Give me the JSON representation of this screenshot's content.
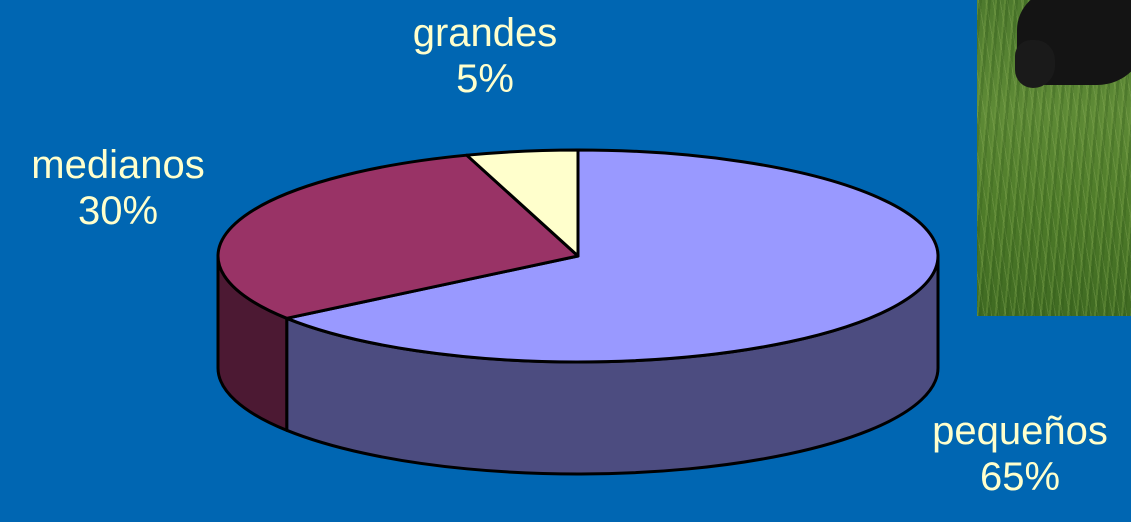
{
  "chart_data": {
    "type": "pie",
    "title": "",
    "slices": [
      {
        "label": "pequeños",
        "percent_label": "65%",
        "value": 65,
        "color": "#9999ff",
        "side_color": "#4c4c80"
      },
      {
        "label": "medianos",
        "percent_label": "30%",
        "value": 30,
        "color": "#993366",
        "side_color": "#4c1933"
      },
      {
        "label": "grandes",
        "percent_label": "5%",
        "value": 5,
        "color": "#ffffcc",
        "side_color": "#807f66"
      }
    ],
    "style": "3d",
    "label_color": "#ffffcc",
    "background": "#0066b2"
  },
  "photo": {
    "icon": "grazing-cow-photo"
  }
}
